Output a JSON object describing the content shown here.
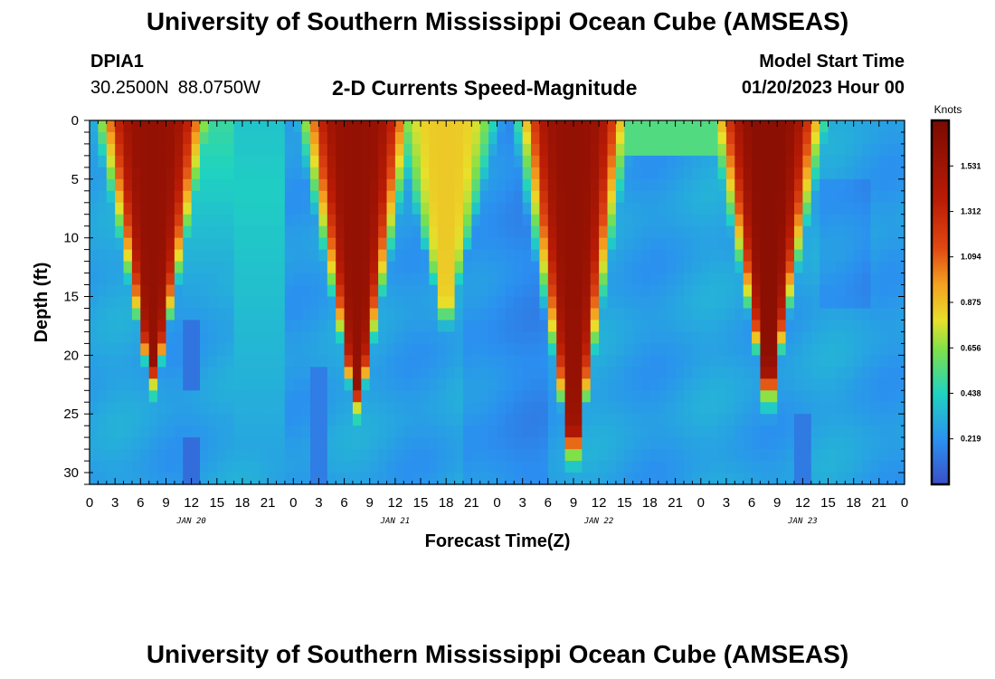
{
  "header": {
    "title": "University of Southern Mississippi Ocean Cube (AMSEAS)",
    "station_id": "DPIA1",
    "latitude": "30.2500N",
    "longitude": "88.0750W",
    "subtitle": "2-D Currents Speed-Magnitude",
    "model_start_label": "Model Start Time",
    "model_start_value": "01/20/2023 Hour 00"
  },
  "footer": {
    "title": "University of Southern Mississippi Ocean Cube (AMSEAS)"
  },
  "chart_data": {
    "type": "heatmap",
    "title": "2-D Currents Speed-Magnitude",
    "xlabel": "Forecast Time(Z)",
    "ylabel": "Depth (ft)",
    "xlim": [
      0,
      96
    ],
    "ylim": [
      31,
      0
    ],
    "x_tick_labels": [
      "0",
      "3",
      "6",
      "9",
      "12",
      "15",
      "18",
      "21",
      "0",
      "3",
      "6",
      "9",
      "12",
      "15",
      "18",
      "21",
      "0",
      "3",
      "6",
      "9",
      "12",
      "15",
      "18",
      "21",
      "0",
      "3",
      "6",
      "9",
      "12",
      "15",
      "18",
      "21",
      "0"
    ],
    "day_labels": [
      {
        "label": "JAN 20",
        "hour": 12
      },
      {
        "label": "JAN 21",
        "hour": 36
      },
      {
        "label": "JAN 22",
        "hour": 60
      },
      {
        "label": "JAN 23",
        "hour": 84
      }
    ],
    "y_ticks": [
      0,
      5,
      10,
      15,
      20,
      25,
      30
    ],
    "colorbar": {
      "unit": "Knots",
      "min": 0,
      "max": 1.75,
      "tick_values": [
        "1.531",
        "1.312",
        "1.094",
        "0.875",
        "0.656",
        "0.438",
        "0.219"
      ]
    },
    "features": [
      {
        "kind": "high-speed core",
        "hour_center": 7.5,
        "depth_extent_ft": 21,
        "peak_knots": 1.6
      },
      {
        "kind": "high-speed core",
        "hour_center": 31.5,
        "depth_extent_ft": 23,
        "peak_knots": 1.6
      },
      {
        "kind": "moderate core",
        "hour_center": 42,
        "depth_extent_ft": 16,
        "peak_knots": 0.85
      },
      {
        "kind": "high-speed core",
        "hour_center": 57,
        "depth_extent_ft": 27,
        "peak_knots": 1.6
      },
      {
        "kind": "high-speed core",
        "hour_center": 80,
        "depth_extent_ft": 22,
        "peak_knots": 1.65
      }
    ]
  }
}
